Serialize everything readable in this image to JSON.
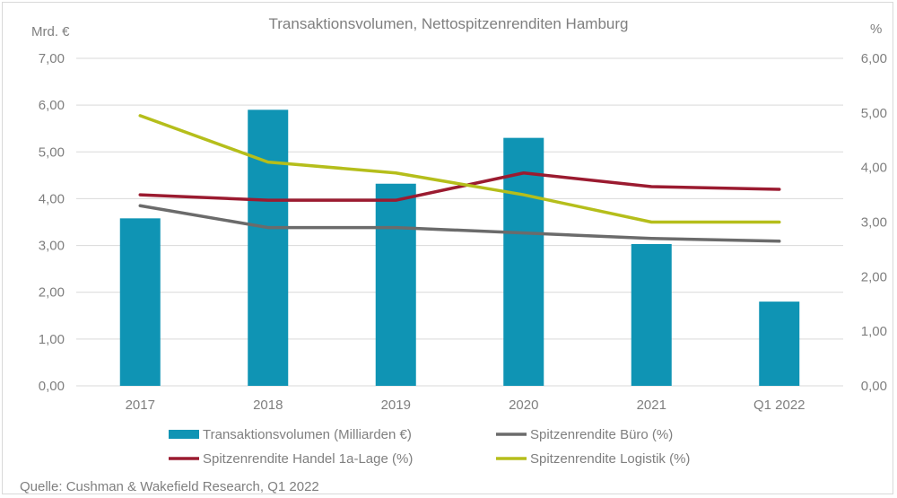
{
  "chart_data": {
    "type": "bar",
    "title": "Transaktionsvolumen, Nettospitzenrenditen Hamburg",
    "left_unit": "Mrd. €",
    "right_unit": "%",
    "categories": [
      "2017",
      "2018",
      "2019",
      "2020",
      "2021",
      "Q1 2022"
    ],
    "left_axis": {
      "ylim": [
        0,
        7
      ],
      "ticks": [
        "0,00",
        "1,00",
        "2,00",
        "3,00",
        "4,00",
        "5,00",
        "6,00",
        "7,00"
      ]
    },
    "right_axis": {
      "ylim": [
        0,
        6
      ],
      "ticks": [
        "0,00",
        "1,00",
        "2,00",
        "3,00",
        "4,00",
        "5,00",
        "6,00"
      ]
    },
    "series": [
      {
        "name": "Transaktionsvolumen (Milliarden €)",
        "type": "bar",
        "axis": "left",
        "color": "#0f94b4",
        "values": [
          3.58,
          5.9,
          4.32,
          5.3,
          3.03,
          1.8
        ]
      },
      {
        "name": "Spitzenrendite Büro (%)",
        "type": "line",
        "axis": "right",
        "color": "#6b6b6b",
        "values": [
          3.3,
          2.9,
          2.9,
          2.8,
          2.7,
          2.65
        ]
      },
      {
        "name": "Spitzenrendite Handel 1a-Lage (%)",
        "type": "line",
        "axis": "right",
        "color": "#9b1b30",
        "values": [
          3.5,
          3.4,
          3.4,
          3.9,
          3.65,
          3.6
        ]
      },
      {
        "name": "Spitzenrendite Logistik (%)",
        "type": "line",
        "axis": "right",
        "color": "#b5be1b",
        "values": [
          4.95,
          4.1,
          3.9,
          3.5,
          3.0,
          3.0
        ]
      }
    ],
    "gridlines": true,
    "legend_position": "bottom"
  },
  "source": "Quelle: Cushman & Wakefield Research, Q1 2022"
}
